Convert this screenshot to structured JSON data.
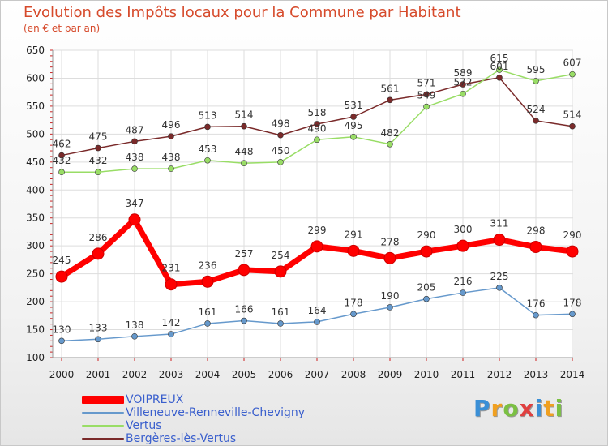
{
  "header": {
    "title": "Evolution des Impôts locaux pour la Commune par Habitant",
    "subtitle": "(en € et par an)"
  },
  "chart_data": {
    "type": "line",
    "title": "Evolution des Impôts locaux pour la Commune par Habitant",
    "subtitle": "(en € et par an)",
    "x": [
      "2000",
      "2001",
      "2002",
      "2003",
      "2004",
      "2005",
      "2006",
      "2007",
      "2008",
      "2009",
      "2010",
      "2011",
      "2012",
      "2013",
      "2014"
    ],
    "ylim": [
      100,
      650
    ],
    "yticks": [
      100,
      150,
      200,
      250,
      300,
      350,
      400,
      450,
      500,
      550,
      600,
      650
    ],
    "grid": true,
    "legend_position": "bottom-left",
    "series": [
      {
        "name": "VOIPREUX",
        "color": "#ff0000",
        "values": [
          245,
          286,
          347,
          231,
          236,
          257,
          254,
          299,
          291,
          278,
          290,
          300,
          311,
          298,
          290
        ]
      },
      {
        "name": "Villeneuve-Renneville-Chevigny",
        "color": "#6699cc",
        "values": [
          130,
          133,
          138,
          142,
          161,
          166,
          161,
          164,
          178,
          190,
          205,
          216,
          225,
          176,
          178
        ]
      },
      {
        "name": "Vertus",
        "color": "#99dd66",
        "values": [
          432,
          432,
          438,
          438,
          453,
          448,
          450,
          490,
          495,
          482,
          549,
          572,
          615,
          595,
          607
        ]
      },
      {
        "name": "Bergères-lès-Vertus",
        "color": "#7a2a2a",
        "values": [
          462,
          475,
          487,
          496,
          513,
          514,
          498,
          518,
          531,
          561,
          571,
          589,
          601,
          524,
          514
        ]
      }
    ]
  },
  "logo": {
    "letters": [
      "P",
      "r",
      "o",
      "x",
      "i",
      "t",
      "i"
    ],
    "colors": [
      "#3a8fd6",
      "#f0a020",
      "#7bc043",
      "#e04040",
      "#3a8fd6",
      "#f0a020",
      "#7bc043"
    ]
  }
}
